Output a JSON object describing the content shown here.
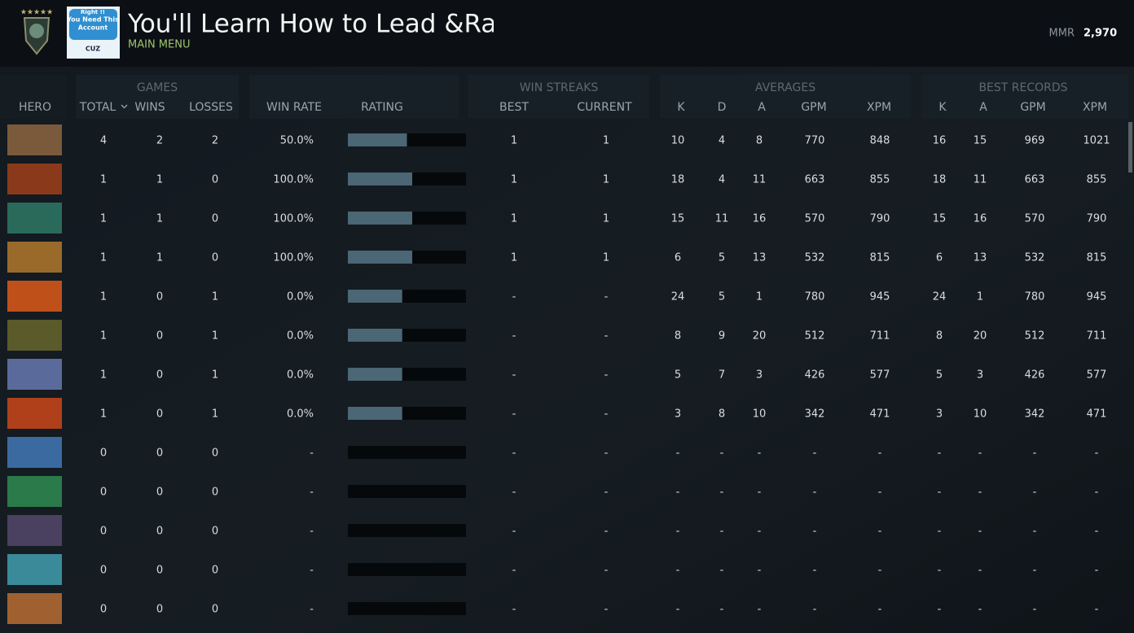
{
  "header": {
    "title": "You'll Learn How to Lead &Ra",
    "subtitle": "MAIN MENU",
    "mmr_label": "MMR",
    "mmr_value": "2,970",
    "badge": [
      "Right !!",
      "You Need This",
      "Account",
      "CUZ"
    ]
  },
  "table": {
    "groups": [
      "GAMES",
      "WIN STREAKS",
      "AVERAGES",
      "BEST RECORDS"
    ],
    "columns": [
      "HERO",
      "TOTAL",
      "WINS",
      "LOSSES",
      "WIN RATE",
      "RATING",
      "BEST",
      "CURRENT",
      "K",
      "D",
      "A",
      "GPM",
      "XPM",
      "K",
      "A",
      "GPM",
      "XPM"
    ],
    "rating_range": [
      0,
      100
    ],
    "rows": [
      [
        "4",
        "2",
        "2",
        "50.0%",
        50,
        "1",
        "1",
        "10",
        "4",
        "8",
        "770",
        "848",
        "16",
        "15",
        "969",
        "1021"
      ],
      [
        "1",
        "1",
        "0",
        "100.0%",
        54.5,
        "1",
        "1",
        "18",
        "4",
        "11",
        "663",
        "855",
        "18",
        "11",
        "663",
        "855"
      ],
      [
        "1",
        "1",
        "0",
        "100.0%",
        54.5,
        "1",
        "1",
        "15",
        "11",
        "16",
        "570",
        "790",
        "15",
        "16",
        "570",
        "790"
      ],
      [
        "1",
        "1",
        "0",
        "100.0%",
        54.5,
        "1",
        "1",
        "6",
        "5",
        "13",
        "532",
        "815",
        "6",
        "13",
        "532",
        "815"
      ],
      [
        "1",
        "0",
        "1",
        "0.0%",
        46,
        "-",
        "-",
        "24",
        "5",
        "1",
        "780",
        "945",
        "24",
        "1",
        "780",
        "945"
      ],
      [
        "1",
        "0",
        "1",
        "0.0%",
        46,
        "-",
        "-",
        "8",
        "9",
        "20",
        "512",
        "711",
        "8",
        "20",
        "512",
        "711"
      ],
      [
        "1",
        "0",
        "1",
        "0.0%",
        46,
        "-",
        "-",
        "5",
        "7",
        "3",
        "426",
        "577",
        "5",
        "3",
        "426",
        "577"
      ],
      [
        "1",
        "0",
        "1",
        "0.0%",
        46,
        "-",
        "-",
        "3",
        "8",
        "10",
        "342",
        "471",
        "3",
        "10",
        "342",
        "471"
      ],
      [
        "0",
        "0",
        "0",
        "-",
        null,
        "-",
        "-",
        "-",
        "-",
        "-",
        "-",
        "-",
        "-",
        "-",
        "-",
        "-"
      ],
      [
        "0",
        "0",
        "0",
        "-",
        null,
        "-",
        "-",
        "-",
        "-",
        "-",
        "-",
        "-",
        "-",
        "-",
        "-",
        "-"
      ],
      [
        "0",
        "0",
        "0",
        "-",
        null,
        "-",
        "-",
        "-",
        "-",
        "-",
        "-",
        "-",
        "-",
        "-",
        "-",
        "-"
      ],
      [
        "0",
        "0",
        "0",
        "-",
        null,
        "-",
        "-",
        "-",
        "-",
        "-",
        "-",
        "-",
        "-",
        "-",
        "-",
        "-"
      ],
      [
        "0",
        "0",
        "0",
        "-",
        null,
        "-",
        "-",
        "-",
        "-",
        "-",
        "-",
        "-",
        "-",
        "-",
        "-",
        "-"
      ]
    ]
  }
}
